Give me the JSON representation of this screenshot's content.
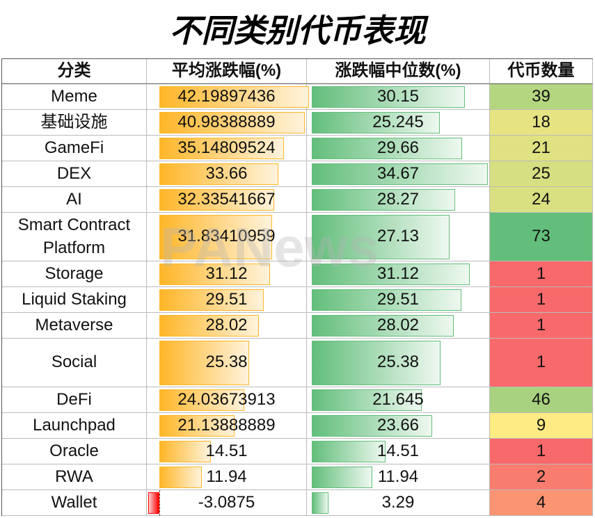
{
  "title": "不同类别代币表现",
  "watermark": "PANews",
  "table": {
    "columns": [
      "分类",
      "平均涨跌幅(%)",
      "涨跌幅中位数(%)",
      "代币数量"
    ],
    "rows": [
      [
        "Meme",
        42.19897436,
        30.15,
        39
      ],
      [
        "基础设施",
        40.98388889,
        25.245,
        18
      ],
      [
        "GameFi",
        35.14809524,
        29.66,
        21
      ],
      [
        "DEX",
        33.66,
        34.67,
        25
      ],
      [
        "AI",
        32.33541667,
        28.27,
        24
      ],
      [
        "Smart Contract Platform",
        31.83410959,
        27.13,
        73
      ],
      [
        "Storage",
        31.12,
        31.12,
        1
      ],
      [
        "Liquid Staking",
        29.51,
        29.51,
        1
      ],
      [
        "Metaverse",
        28.02,
        28.02,
        1
      ],
      [
        "Social",
        25.38,
        25.38,
        1
      ],
      [
        "DeFi",
        24.03673913,
        21.645,
        46
      ],
      [
        "Launchpad",
        21.13888889,
        23.66,
        9
      ],
      [
        "Oracle",
        14.51,
        14.51,
        1
      ],
      [
        "RWA",
        11.94,
        11.94,
        2
      ],
      [
        "Wallet",
        -3.0875,
        3.29,
        4
      ]
    ],
    "count_colors": [
      "#b5d680",
      "#e6e383",
      "#dfe182",
      "#d6df81",
      "#d9e081",
      "#63be7b",
      "#f8696b",
      "#f8696b",
      "#f8696b",
      "#f8696b",
      "#a8d27f",
      "#ffeb84",
      "#f8696b",
      "#f97d6e",
      "#fa9473"
    ],
    "avg_bar_color": "#ffb628",
    "median_bar_color": "#63be7b",
    "negative_bar_color": "#ff0000"
  }
}
